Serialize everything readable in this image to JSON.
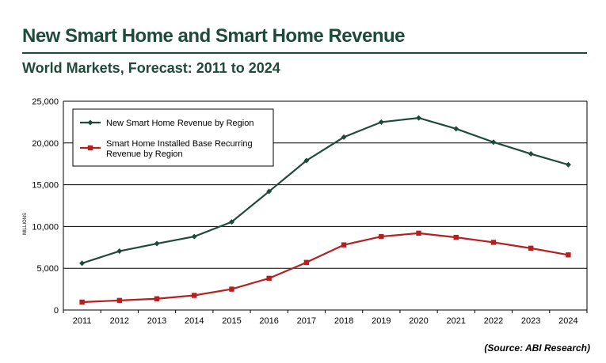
{
  "header": {
    "title": "New Smart Home and Smart Home Revenue",
    "subtitle": "World Markets, Forecast: 2011 to 2024"
  },
  "source": "(Source: ABI Research)",
  "chart_data": {
    "type": "line",
    "x": [
      "2011",
      "2012",
      "2013",
      "2014",
      "2015",
      "2016",
      "2017",
      "2018",
      "2019",
      "2020",
      "2021",
      "2022",
      "2023",
      "2024"
    ],
    "ylabel": "MILLIONS",
    "ylim": [
      0,
      25000
    ],
    "yticks": [
      "0",
      "5,000",
      "10,000",
      "15,000",
      "20,000",
      "25,000"
    ],
    "grid": true,
    "legend_placement": "top-left",
    "series": [
      {
        "name": "New Smart Home Revenue by Region",
        "color": "#1e4a3a",
        "marker": "diamond",
        "values": [
          5600,
          7050,
          7950,
          8800,
          10550,
          14200,
          17900,
          20700,
          22500,
          23000,
          21700,
          20100,
          18700,
          17400
        ]
      },
      {
        "name": "Smart Home Installed Base Recurring Revenue by Region",
        "name_lines": [
          "Smart Home Installed Base Recurring",
          "Revenue by Region"
        ],
        "color": "#b51f1f",
        "marker": "square",
        "values": [
          950,
          1150,
          1350,
          1750,
          2500,
          3800,
          5700,
          7800,
          8800,
          9200,
          8700,
          8100,
          7400,
          6600
        ]
      }
    ]
  }
}
